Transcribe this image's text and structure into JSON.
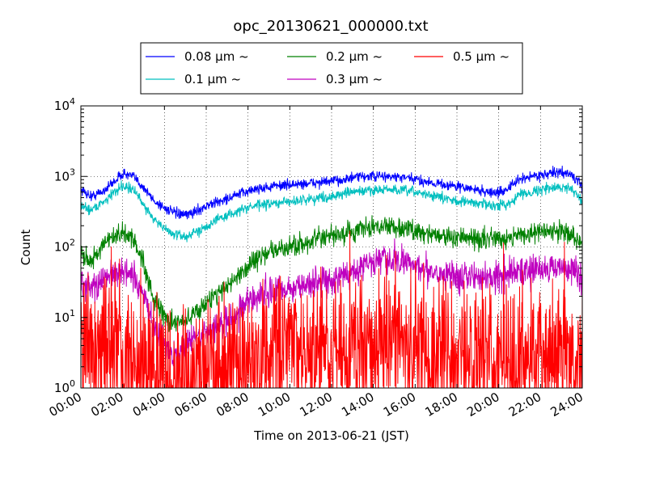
{
  "chart_data": {
    "type": "line",
    "title": "opc_20130621_000000.txt",
    "xlabel": "Time on 2013-06-21 (JST)",
    "ylabel": "Count",
    "yscale": "log",
    "ylim": [
      1,
      10000
    ],
    "xlim": [
      "00:00",
      "24:00"
    ],
    "x_ticks": [
      "00:00",
      "02:00",
      "04:00",
      "06:00",
      "08:00",
      "10:00",
      "12:00",
      "14:00",
      "16:00",
      "18:00",
      "20:00",
      "22:00",
      "24:00"
    ],
    "y_ticks": [
      {
        "value": 1,
        "base": "10",
        "exp": "0"
      },
      {
        "value": 10,
        "base": "10",
        "exp": "1"
      },
      {
        "value": 100,
        "base": "10",
        "exp": "2"
      },
      {
        "value": 1000,
        "base": "10",
        "exp": "3"
      },
      {
        "value": 10000,
        "base": "10",
        "exp": "4"
      }
    ],
    "grid": true,
    "legend_position": "top-center",
    "x_hours": [
      0,
      0.5,
      1,
      1.5,
      2,
      2.5,
      3,
      3.5,
      4,
      4.5,
      5,
      5.5,
      6,
      6.5,
      7,
      7.5,
      8,
      8.5,
      9,
      9.5,
      10,
      10.5,
      11,
      11.5,
      12,
      12.5,
      13,
      13.5,
      14,
      14.5,
      15,
      15.5,
      16,
      16.5,
      17,
      17.5,
      18,
      18.5,
      19,
      19.5,
      20,
      20.5,
      21,
      21.5,
      22,
      22.5,
      23,
      23.5,
      24
    ],
    "series": [
      {
        "name": "0.08 μm ~",
        "color": "#0000ff",
        "noise": 0.05,
        "values": [
          650,
          520,
          600,
          800,
          1100,
          1000,
          700,
          450,
          360,
          300,
          280,
          320,
          380,
          430,
          480,
          550,
          620,
          680,
          700,
          750,
          760,
          780,
          800,
          830,
          850,
          900,
          950,
          1000,
          1000,
          1000,
          980,
          950,
          900,
          850,
          800,
          760,
          720,
          680,
          640,
          600,
          580,
          700,
          900,
          1000,
          1050,
          1100,
          1150,
          1050,
          700
        ]
      },
      {
        "name": "0.1 μm ~",
        "color": "#00bfbf",
        "noise": 0.05,
        "values": [
          380,
          340,
          420,
          560,
          750,
          650,
          400,
          250,
          180,
          150,
          140,
          160,
          200,
          240,
          280,
          320,
          360,
          390,
          400,
          420,
          440,
          460,
          480,
          500,
          520,
          560,
          600,
          620,
          640,
          650,
          640,
          620,
          600,
          560,
          520,
          480,
          450,
          430,
          420,
          400,
          380,
          420,
          550,
          600,
          650,
          680,
          700,
          680,
          450
        ]
      },
      {
        "name": "0.2 μm ~",
        "color": "#008000",
        "noise": 0.1,
        "values": [
          90,
          60,
          100,
          130,
          160,
          130,
          60,
          18,
          10,
          8,
          9,
          12,
          16,
          22,
          28,
          38,
          55,
          70,
          85,
          90,
          100,
          110,
          120,
          130,
          140,
          150,
          160,
          180,
          190,
          200,
          195,
          180,
          170,
          160,
          150,
          140,
          135,
          130,
          130,
          130,
          135,
          140,
          150,
          155,
          160,
          165,
          165,
          160,
          100
        ]
      },
      {
        "name": "0.3 μm ~",
        "color": "#bf00bf",
        "noise": 0.15,
        "values": [
          32,
          25,
          35,
          40,
          45,
          35,
          20,
          8,
          4,
          3,
          4,
          5,
          6,
          7,
          9,
          12,
          17,
          20,
          22,
          24,
          26,
          28,
          30,
          32,
          34,
          38,
          45,
          55,
          60,
          62,
          62,
          60,
          55,
          50,
          45,
          42,
          40,
          38,
          38,
          38,
          40,
          42,
          45,
          48,
          50,
          50,
          50,
          48,
          35
        ]
      },
      {
        "name": "0.5 μm ~",
        "color": "#ff0000",
        "noise": 0.8,
        "values": [
          3,
          3,
          3,
          3,
          3,
          3,
          2.5,
          1.5,
          1.2,
          1.2,
          1.3,
          1.5,
          1.8,
          2,
          2,
          2,
          2.5,
          2.5,
          2.5,
          3,
          3,
          3,
          3,
          3,
          3,
          3,
          4,
          4.5,
          5,
          5,
          4.5,
          4,
          3.5,
          3,
          3,
          3,
          2.5,
          2.5,
          2.5,
          2.5,
          2.5,
          2.5,
          3,
          3,
          3,
          3,
          3,
          3,
          2.5
        ]
      }
    ]
  }
}
